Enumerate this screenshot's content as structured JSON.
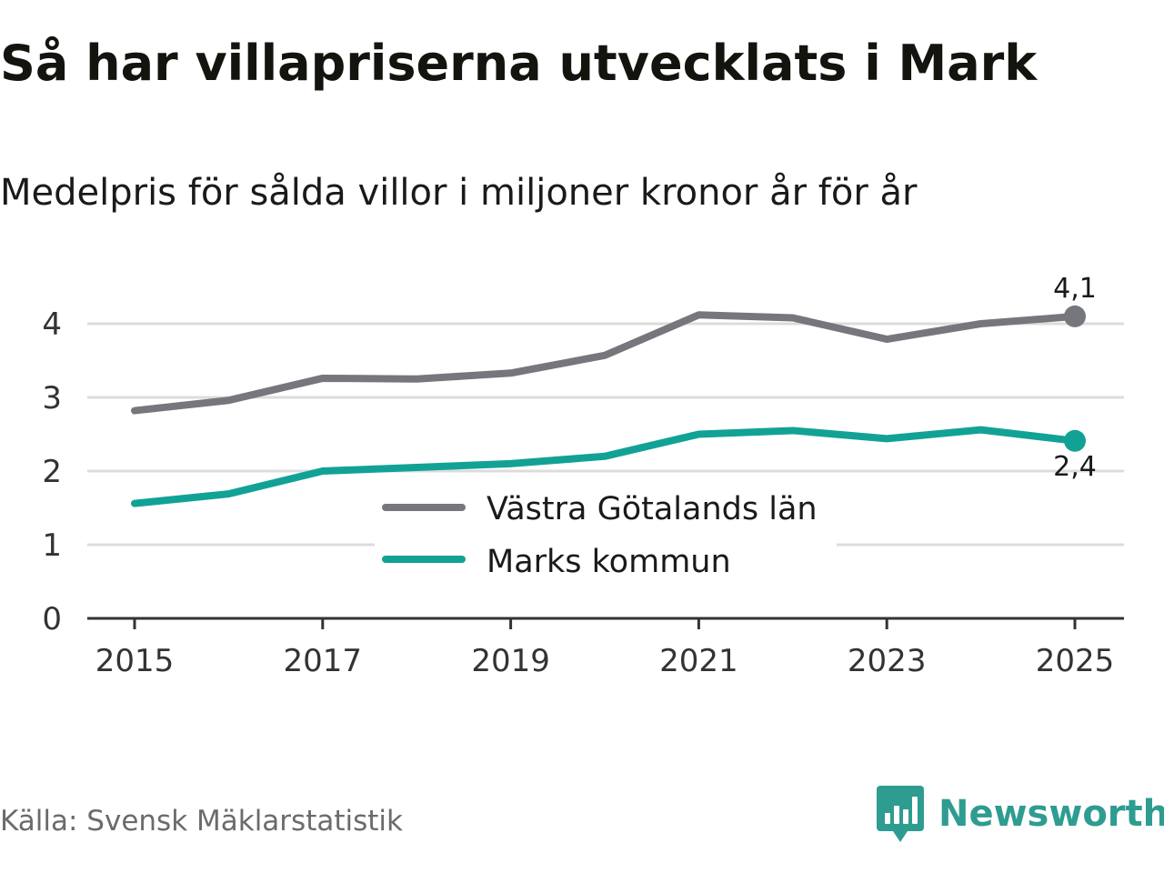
{
  "colors": {
    "region": "#76767d",
    "municipality": "#12a295",
    "grid": "#dcdcdc",
    "axis": "#333333",
    "brand": "#2e9c91",
    "source_text": "#6b6b6b"
  },
  "source": "Källa: Svensk Mäklarstatistik",
  "brand": {
    "name": "Newsworthy",
    "icon": "bar-chart-speech-bubble-icon"
  },
  "chart_data": {
    "type": "line",
    "title": "Så har villapriserna utvecklats i Mark",
    "subtitle": "Medelpris för sålda villor i miljoner kronor år för år",
    "xlabel": "",
    "ylabel": "",
    "x": [
      2015,
      2016,
      2017,
      2018,
      2019,
      2020,
      2021,
      2022,
      2023,
      2024,
      2025
    ],
    "xticks": [
      "2015",
      "2017",
      "2019",
      "2021",
      "2023",
      "2025"
    ],
    "yticks": [
      "0",
      "1",
      "2",
      "3",
      "4"
    ],
    "ylim": [
      0,
      4.5
    ],
    "grid": true,
    "legend_position": "center",
    "series": [
      {
        "name": "Västra Götalands län",
        "color": "#76767d",
        "values": [
          2.82,
          2.96,
          3.26,
          3.25,
          3.33,
          3.57,
          4.12,
          4.08,
          3.79,
          4.0,
          4.1
        ],
        "end_label": "4,1"
      },
      {
        "name": "Marks kommun",
        "color": "#12a295",
        "values": [
          1.56,
          1.69,
          2.0,
          2.05,
          2.1,
          2.2,
          2.5,
          2.55,
          2.44,
          2.56,
          2.41
        ],
        "end_label": "2,4"
      }
    ]
  }
}
